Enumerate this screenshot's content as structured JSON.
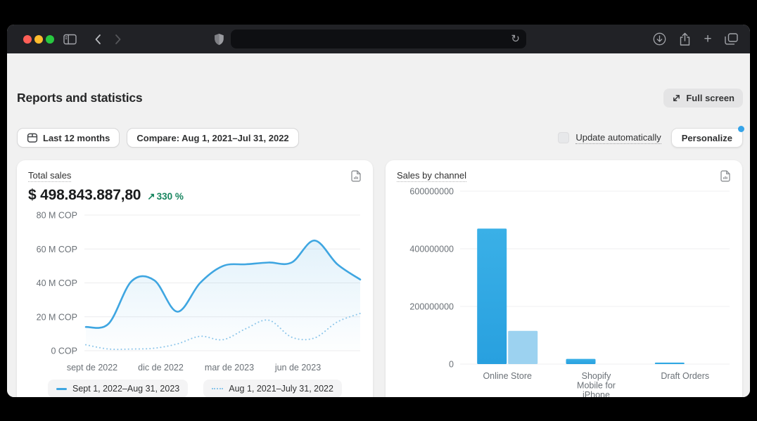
{
  "browser": {
    "url_value": "",
    "icons": {
      "reload": "↻",
      "new_tab": "+"
    }
  },
  "header": {
    "title": "Reports and statistics",
    "full_screen_label": "Full screen"
  },
  "filters": {
    "date_range_label": "Last 12 months",
    "compare_label": "Compare: Aug 1, 2021–Jul 31, 2022",
    "update_automatically_label": "Update automatically",
    "update_automatically_checked": false,
    "personalize_label": "Personalize",
    "personalize_badge_color": "#35a3e8"
  },
  "cards": {
    "total_sales": {
      "title": "Total sales",
      "value": "$ 498.843.887,80",
      "trend_arrow": "↗",
      "change": "330 %",
      "change_color": "#17855f"
    },
    "sales_by_channel": {
      "title": "Sales by channel"
    }
  },
  "chart_data": [
    {
      "id": "total-sales-line",
      "type": "line",
      "title": "Total sales",
      "unit": "COP",
      "ylim_m": [
        0,
        80
      ],
      "y_ticks": [
        "80 M COP",
        "60 M COP",
        "40 M COP",
        "20 M COP",
        "0 COP"
      ],
      "y_tick_values_m": [
        80,
        60,
        40,
        20,
        0
      ],
      "x_ticks": [
        "sept de 2022",
        "dic de 2022",
        "mar de 2023",
        "jun de 2023"
      ],
      "x_tick_indices": [
        0,
        3,
        6,
        9
      ],
      "grid": true,
      "legend_position": "bottom",
      "series": [
        {
          "name": "Sept 1, 2022–Aug 31, 2023",
          "style": "solid",
          "color": "#3fa6e1",
          "area_fill": true,
          "values_m": [
            14,
            16,
            41,
            41.5,
            23,
            40,
            50,
            51,
            52,
            52,
            65,
            51,
            42
          ]
        },
        {
          "name": "Aug 1, 2021–July 31, 2022",
          "style": "dotted",
          "color": "#8cc6ea",
          "values_m": [
            3.5,
            1,
            1,
            1.5,
            4,
            8.5,
            6.5,
            13,
            18,
            8,
            7.5,
            17,
            22
          ]
        }
      ]
    },
    {
      "id": "sales-by-channel-bar",
      "type": "bar",
      "title": "Sales by channel",
      "categories": [
        "Online Store",
        "Shopify Mobile for iPhone",
        "Draft Orders"
      ],
      "category_label_lines": [
        [
          "Online Store"
        ],
        [
          "Shopify",
          "Mobile for",
          "iPhone"
        ],
        [
          "Draft Orders"
        ]
      ],
      "y_ticks": [
        "600000000",
        "400000000",
        "200000000",
        "0"
      ],
      "y_tick_values": [
        600000000,
        400000000,
        200000000,
        0
      ],
      "ylim": [
        0,
        600000000
      ],
      "grid": true,
      "series": [
        {
          "name": "Sept 1, 2022–Aug 31, 2023",
          "color": "#2ea7e3",
          "values": [
            470000000,
            18000000,
            5000000
          ]
        },
        {
          "name": "Aug 1, 2021–July 31, 2022",
          "color": "#9cd2f0",
          "values": [
            115000000,
            0,
            0
          ]
        }
      ]
    }
  ]
}
